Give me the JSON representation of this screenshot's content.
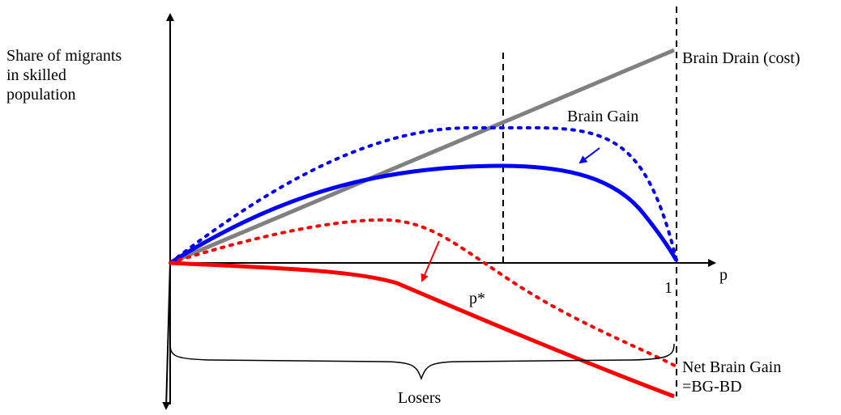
{
  "ylabel": {
    "lines": [
      "Share of migrants",
      "in skilled",
      "population"
    ]
  },
  "xlabel": "p",
  "ticks": {
    "p_star": "p*",
    "one": "1"
  },
  "curves": {
    "brain_drain": {
      "label": "Brain Drain (cost)",
      "color": "#808080"
    },
    "brain_gain": {
      "label": "Brain Gain",
      "color": "#0000ff"
    },
    "net_brain_gain": {
      "label_lines": [
        "Net Brain Gain",
        "=BG-BD"
      ],
      "color": "#ff0000"
    }
  },
  "brace_label": "Losers"
}
